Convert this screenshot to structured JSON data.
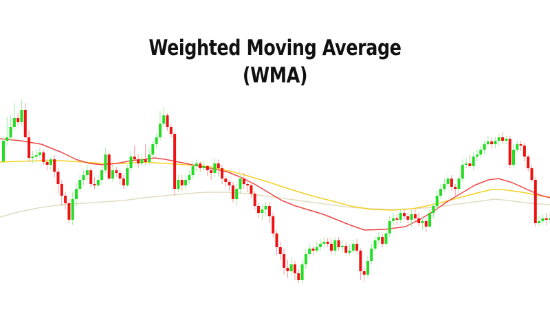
{
  "title": {
    "line1": "Weighted Moving Average",
    "line2": "(WMA)"
  },
  "colors": {
    "background": "#ffffff",
    "up_candle": "#22dd22",
    "down_candle": "#ee1111",
    "wick_up": "#99ee99",
    "wick_down": "#f59a9a",
    "wma_fast": "#ee4444",
    "wma_mid": "#f5d020",
    "wma_slow": "#e0dcc0"
  },
  "chart_data": {
    "type": "candlestick",
    "title": "Weighted Moving Average (WMA)",
    "xlabel": "",
    "ylabel": "",
    "axes_visible": false,
    "grid": false,
    "legend": null,
    "note": "Pixel-space y coordinates (top=0); lower y = higher price. OHLC approximated from image.",
    "candle_width": 4,
    "candle_spacing": 5.3,
    "x_start": 3,
    "candles": [
      [
        235,
        205,
        238,
        200
      ],
      [
        205,
        200,
        212,
        170
      ],
      [
        200,
        185,
        205,
        168
      ],
      [
        185,
        172,
        190,
        150
      ],
      [
        172,
        178,
        182,
        165
      ],
      [
        178,
        160,
        182,
        145
      ],
      [
        160,
        200,
        198,
        150
      ],
      [
        200,
        230,
        235,
        190
      ],
      [
        230,
        228,
        238,
        220
      ],
      [
        228,
        226,
        232,
        218
      ],
      [
        226,
        222,
        230,
        215
      ],
      [
        222,
        236,
        240,
        218
      ],
      [
        236,
        240,
        248,
        232
      ],
      [
        240,
        232,
        248,
        228
      ],
      [
        232,
        250,
        258,
        226
      ],
      [
        250,
        268,
        282,
        245
      ],
      [
        268,
        285,
        300,
        262
      ],
      [
        285,
        296,
        305,
        280
      ],
      [
        296,
        320,
        325,
        290
      ],
      [
        320,
        290,
        328,
        280
      ],
      [
        290,
        275,
        300,
        266
      ],
      [
        275,
        262,
        280,
        255
      ],
      [
        262,
        255,
        270,
        248
      ],
      [
        255,
        248,
        262,
        240
      ],
      [
        248,
        268,
        272,
        244
      ],
      [
        268,
        270,
        275,
        258
      ],
      [
        270,
        262,
        275,
        255
      ],
      [
        262,
        248,
        268,
        242
      ],
      [
        248,
        225,
        252,
        215
      ],
      [
        225,
        260,
        262,
        220
      ],
      [
        260,
        248,
        265,
        240
      ],
      [
        248,
        252,
        258,
        243
      ],
      [
        252,
        260,
        268,
        248
      ],
      [
        260,
        270,
        275,
        255
      ],
      [
        270,
        245,
        272,
        240
      ],
      [
        245,
        228,
        250,
        220
      ],
      [
        228,
        232,
        235,
        212
      ],
      [
        232,
        238,
        245,
        225
      ],
      [
        238,
        232,
        242,
        225
      ],
      [
        232,
        236,
        240,
        210
      ],
      [
        236,
        225,
        240,
        215
      ],
      [
        225,
        210,
        230,
        205
      ],
      [
        210,
        200,
        216,
        195
      ],
      [
        200,
        180,
        205,
        162
      ],
      [
        180,
        168,
        185,
        156
      ],
      [
        168,
        185,
        190,
        165
      ],
      [
        185,
        195,
        200,
        180
      ],
      [
        195,
        275,
        285,
        192
      ],
      [
        275,
        262,
        280,
        255
      ],
      [
        262,
        270,
        278,
        255
      ],
      [
        270,
        262,
        275,
        255
      ],
      [
        262,
        255,
        268,
        248
      ],
      [
        255,
        242,
        260,
        236
      ],
      [
        242,
        238,
        250,
        232
      ],
      [
        238,
        245,
        250,
        235
      ],
      [
        245,
        242,
        250,
        235
      ],
      [
        242,
        248,
        256,
        240
      ],
      [
        248,
        252,
        262,
        245
      ],
      [
        252,
        238,
        258,
        230
      ],
      [
        238,
        245,
        256,
        232
      ],
      [
        245,
        260,
        268,
        240
      ],
      [
        260,
        265,
        272,
        256
      ],
      [
        265,
        270,
        278,
        262
      ],
      [
        270,
        290,
        295,
        265
      ],
      [
        290,
        275,
        300,
        268
      ],
      [
        275,
        260,
        282,
        255
      ],
      [
        260,
        268,
        275,
        252
      ],
      [
        268,
        270,
        280,
        262
      ],
      [
        270,
        282,
        288,
        265
      ],
      [
        282,
        300,
        305,
        278
      ],
      [
        300,
        310,
        318,
        295
      ],
      [
        310,
        305,
        320,
        298
      ],
      [
        305,
        300,
        315,
        294
      ],
      [
        300,
        315,
        325,
        295
      ],
      [
        315,
        340,
        345,
        310
      ],
      [
        340,
        360,
        372,
        336
      ],
      [
        360,
        370,
        378,
        352
      ],
      [
        370,
        390,
        400,
        362
      ],
      [
        390,
        395,
        405,
        378
      ],
      [
        395,
        385,
        400,
        375
      ],
      [
        385,
        398,
        408,
        380
      ],
      [
        398,
        408,
        412,
        392
      ],
      [
        408,
        385,
        412,
        378
      ],
      [
        385,
        370,
        392,
        362
      ],
      [
        370,
        362,
        375,
        356
      ],
      [
        362,
        365,
        372,
        358
      ],
      [
        365,
        360,
        368,
        352
      ],
      [
        360,
        355,
        365,
        348
      ],
      [
        355,
        352,
        360,
        345
      ],
      [
        352,
        355,
        360,
        346
      ],
      [
        355,
        365,
        370,
        348
      ],
      [
        365,
        350,
        372,
        345
      ],
      [
        350,
        360,
        365,
        345
      ],
      [
        360,
        358,
        368,
        350
      ],
      [
        358,
        368,
        372,
        352
      ],
      [
        368,
        365,
        372,
        356
      ],
      [
        365,
        355,
        368,
        350
      ],
      [
        355,
        365,
        370,
        348
      ],
      [
        365,
        395,
        408,
        362
      ],
      [
        395,
        400,
        410,
        388
      ],
      [
        400,
        380,
        405,
        372
      ],
      [
        380,
        362,
        385,
        355
      ],
      [
        362,
        350,
        365,
        345
      ],
      [
        350,
        345,
        355,
        338
      ],
      [
        345,
        355,
        360,
        340
      ],
      [
        355,
        340,
        360,
        335
      ],
      [
        340,
        322,
        345,
        315
      ],
      [
        322,
        318,
        328,
        310
      ],
      [
        318,
        320,
        328,
        312
      ],
      [
        320,
        310,
        325,
        305
      ],
      [
        310,
        315,
        320,
        305
      ],
      [
        315,
        320,
        325,
        310
      ],
      [
        320,
        312,
        330,
        306
      ],
      [
        312,
        318,
        322,
        305
      ],
      [
        318,
        325,
        330,
        310
      ],
      [
        325,
        322,
        335,
        315
      ],
      [
        322,
        330,
        338,
        318
      ],
      [
        330,
        310,
        332,
        305
      ],
      [
        310,
        300,
        318,
        295
      ],
      [
        300,
        285,
        305,
        278
      ],
      [
        285,
        275,
        290,
        268
      ],
      [
        275,
        268,
        280,
        260
      ],
      [
        268,
        260,
        272,
        255
      ],
      [
        260,
        272,
        278,
        255
      ],
      [
        272,
        275,
        285,
        268
      ],
      [
        275,
        260,
        282,
        255
      ],
      [
        260,
        240,
        265,
        232
      ],
      [
        240,
        238,
        245,
        230
      ],
      [
        238,
        242,
        245,
        226
      ],
      [
        242,
        228,
        248,
        222
      ],
      [
        228,
        225,
        235,
        218
      ],
      [
        225,
        218,
        230,
        212
      ],
      [
        218,
        210,
        225,
        205
      ],
      [
        210,
        206,
        212,
        198
      ],
      [
        206,
        210,
        216,
        200
      ],
      [
        210,
        205,
        216,
        200
      ],
      [
        205,
        200,
        212,
        195
      ],
      [
        200,
        205,
        210,
        192
      ],
      [
        205,
        202,
        210,
        198
      ],
      [
        202,
        240,
        245,
        198
      ],
      [
        240,
        218,
        244,
        210
      ],
      [
        218,
        210,
        222,
        205
      ],
      [
        210,
        212,
        220,
        205
      ],
      [
        212,
        228,
        235,
        208
      ],
      [
        228,
        245,
        250,
        225
      ],
      [
        245,
        262,
        265,
        240
      ],
      [
        262,
        325,
        330,
        258
      ],
      [
        325,
        322,
        330,
        315
      ],
      [
        322,
        318,
        328,
        312
      ],
      [
        318,
        320,
        328,
        310
      ],
      [
        320,
        318,
        325,
        312
      ],
      [
        318,
        322,
        326,
        314
      ],
      [
        322,
        316,
        326,
        310
      ],
      [
        316,
        320,
        328,
        312
      ],
      [
        320,
        335,
        340,
        315
      ],
      [
        335,
        330,
        340,
        322
      ],
      [
        330,
        318,
        335,
        310
      ],
      [
        318,
        310,
        322,
        305
      ],
      [
        310,
        300,
        315,
        295
      ],
      [
        300,
        295,
        305,
        288
      ],
      [
        295,
        290,
        296,
        285
      ]
    ],
    "series": [
      {
        "name": "WMA fast (red)",
        "color": "#ee4444",
        "points": [
          [
            0,
            202
          ],
          [
            30,
            205
          ],
          [
            60,
            210
          ],
          [
            90,
            222
          ],
          [
            110,
            232
          ],
          [
            130,
            238
          ],
          [
            150,
            240
          ],
          [
            170,
            238
          ],
          [
            190,
            234
          ],
          [
            210,
            232
          ],
          [
            225,
            230
          ],
          [
            240,
            232
          ],
          [
            270,
            238
          ],
          [
            300,
            244
          ],
          [
            330,
            250
          ],
          [
            350,
            258
          ],
          [
            370,
            268
          ],
          [
            390,
            280
          ],
          [
            410,
            292
          ],
          [
            430,
            300
          ],
          [
            450,
            306
          ],
          [
            470,
            312
          ],
          [
            490,
            320
          ],
          [
            510,
            328
          ],
          [
            530,
            335
          ],
          [
            560,
            334
          ],
          [
            590,
            330
          ],
          [
            610,
            320
          ],
          [
            630,
            308
          ],
          [
            650,
            294
          ],
          [
            670,
            282
          ],
          [
            690,
            270
          ],
          [
            710,
            262
          ],
          [
            725,
            260
          ],
          [
            745,
            266
          ],
          [
            765,
            275
          ],
          [
            785,
            284
          ],
          [
            800,
            288
          ]
        ]
      },
      {
        "name": "WMA mid (yellow)",
        "color": "#f5d020",
        "points": [
          [
            0,
            236
          ],
          [
            30,
            235
          ],
          [
            60,
            234
          ],
          [
            90,
            234
          ],
          [
            120,
            236
          ],
          [
            150,
            238
          ],
          [
            180,
            238
          ],
          [
            210,
            236
          ],
          [
            240,
            238
          ],
          [
            270,
            240
          ],
          [
            300,
            242
          ],
          [
            330,
            248
          ],
          [
            360,
            256
          ],
          [
            390,
            265
          ],
          [
            420,
            275
          ],
          [
            450,
            284
          ],
          [
            480,
            292
          ],
          [
            510,
            300
          ],
          [
            540,
            305
          ],
          [
            570,
            306
          ],
          [
            600,
            304
          ],
          [
            630,
            298
          ],
          [
            660,
            290
          ],
          [
            690,
            282
          ],
          [
            715,
            276
          ],
          [
            730,
            276
          ],
          [
            760,
            280
          ],
          [
            790,
            286
          ],
          [
            800,
            287
          ]
        ]
      },
      {
        "name": "WMA slow (beige)",
        "color": "#e0dcc0",
        "points": [
          [
            0,
            316
          ],
          [
            30,
            308
          ],
          [
            60,
            302
          ],
          [
            90,
            298
          ],
          [
            120,
            296
          ],
          [
            150,
            294
          ],
          [
            180,
            292
          ],
          [
            210,
            288
          ],
          [
            240,
            285
          ],
          [
            270,
            282
          ],
          [
            300,
            280
          ],
          [
            330,
            280
          ],
          [
            360,
            282
          ],
          [
            390,
            286
          ],
          [
            420,
            290
          ],
          [
            450,
            294
          ],
          [
            480,
            298
          ],
          [
            510,
            302
          ],
          [
            540,
            304
          ],
          [
            570,
            305
          ],
          [
            600,
            304
          ],
          [
            630,
            302
          ],
          [
            660,
            298
          ],
          [
            690,
            294
          ],
          [
            720,
            290
          ],
          [
            740,
            292
          ],
          [
            770,
            296
          ],
          [
            800,
            298
          ]
        ]
      }
    ]
  }
}
